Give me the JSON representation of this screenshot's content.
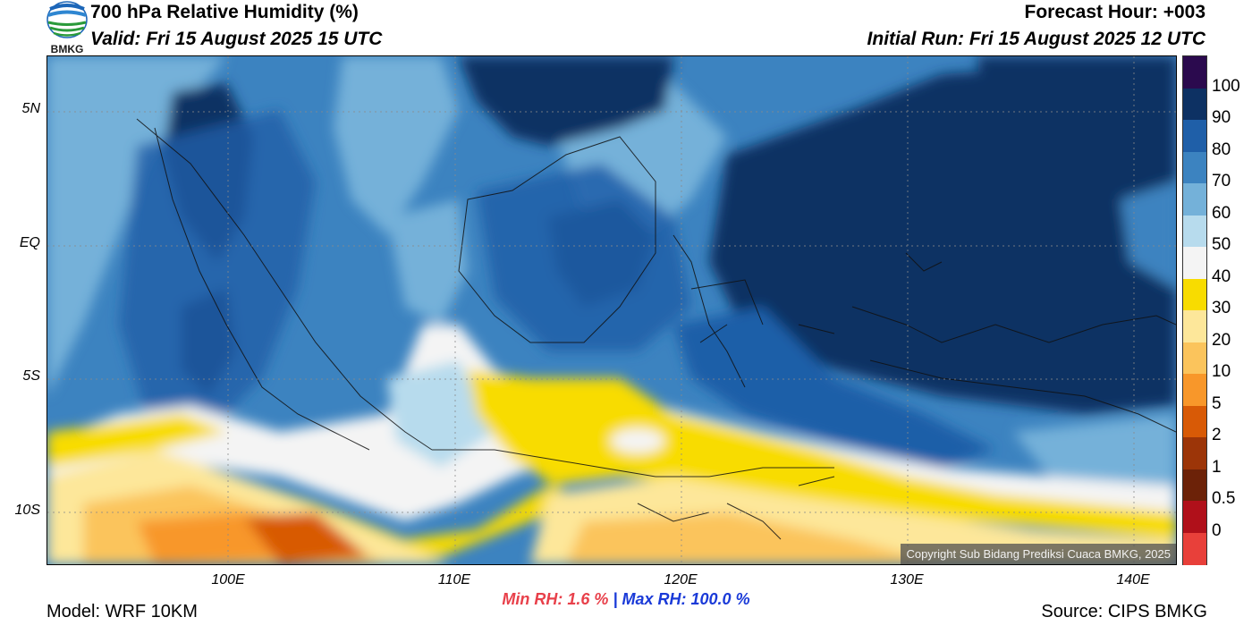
{
  "header": {
    "title": "700 hPa Relative Humidity (%)",
    "valid": "Valid: Fri 15 August 2025 15 UTC",
    "forecast_hour": "Forecast Hour: +003",
    "initial_run": "Initial Run: Fri 15 August 2025 12 UTC"
  },
  "logo": {
    "text": "BMKG",
    "icon": "bmkg-logo-icon"
  },
  "map": {
    "lat_labels": [
      "5N",
      "EQ",
      "5S",
      "10S"
    ],
    "lon_labels": [
      "100E",
      "110E",
      "120E",
      "130E",
      "140E"
    ],
    "copyright": "Copyright Sub Bidang Prediksi Cuaca BMKG, 2025"
  },
  "colorbar": {
    "labels": [
      "100",
      "90",
      "80",
      "70",
      "60",
      "50",
      "40",
      "30",
      "20",
      "10",
      "5",
      "2",
      "1",
      "0.5",
      "0"
    ],
    "colors": [
      "#2b0a4e",
      "#0d3163",
      "#1f5fa8",
      "#3c83c0",
      "#74b1d9",
      "#b7dbed",
      "#f4f4f4",
      "#f8dc00",
      "#fde79a",
      "#fbc45c",
      "#f8972a",
      "#d85a06",
      "#9c3508",
      "#6c2208",
      "#b0101a",
      "#e8403a"
    ]
  },
  "stats": {
    "min_rh": "Min RH:   1.6 %",
    "separator": "|",
    "max_rh": "Max RH: 100.0 %"
  },
  "footer": {
    "model": "Model: WRF 10KM",
    "source": "Source: CIPS BMKG"
  }
}
